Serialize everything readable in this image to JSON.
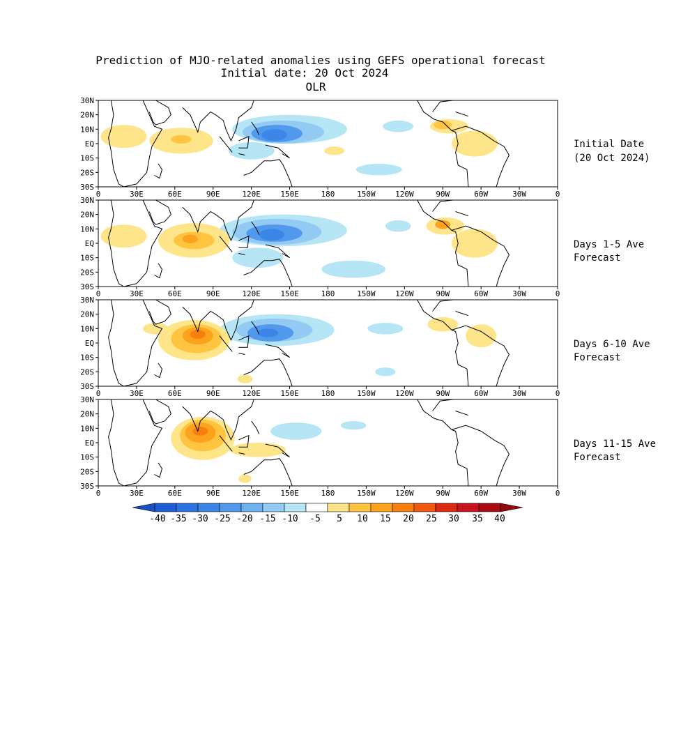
{
  "title": {
    "line1": "Prediction of MJO-related anomalies using GEFS operational forecast",
    "line2": "Initial date: 20 Oct 2024",
    "line3": "OLR"
  },
  "lat_labels": [
    "30N",
    "20N",
    "10N",
    "EQ",
    "10S",
    "20S",
    "30S"
  ],
  "lon_labels": [
    "0",
    "30E",
    "60E",
    "90E",
    "120E",
    "150E",
    "180",
    "150W",
    "120W",
    "90W",
    "60W",
    "30W",
    "0"
  ],
  "panels": [
    {
      "label1": "Initial Date",
      "label2": "(20 Oct 2024)"
    },
    {
      "label1": "Days 1-5 Ave",
      "label2": "Forecast"
    },
    {
      "label1": "Days 6-10 Ave",
      "label2": "Forecast"
    },
    {
      "label1": "Days 11-15 Ave",
      "label2": "Forecast"
    }
  ],
  "colorbar": {
    "labels": [
      "-40",
      "-35",
      "-30",
      "-25",
      "-20",
      "-15",
      "-10",
      "-5",
      "5",
      "10",
      "15",
      "20",
      "25",
      "30",
      "35",
      "40"
    ],
    "colors": [
      "#1f5fd6",
      "#2c74e2",
      "#3c86e8",
      "#5199ec",
      "#6fb0f0",
      "#93caf4",
      "#b6e6f6",
      "#ffffff",
      "#ffe58a",
      "#ffc541",
      "#fca21c",
      "#f77e0f",
      "#f0580e",
      "#dc2c10",
      "#c8141b",
      "#a80c12"
    ]
  },
  "colors": {
    "neg_weak": "#b6e6f6",
    "neg_mid": "#93caf4",
    "neg_strong": "#5199ec",
    "neg_core": "#3c86e8",
    "pos_weak": "#ffe58a",
    "pos_mid": "#ffc541",
    "pos_strong": "#fca21c",
    "pos_core": "#f77e0f",
    "pos_peak": "#f0580e"
  }
}
